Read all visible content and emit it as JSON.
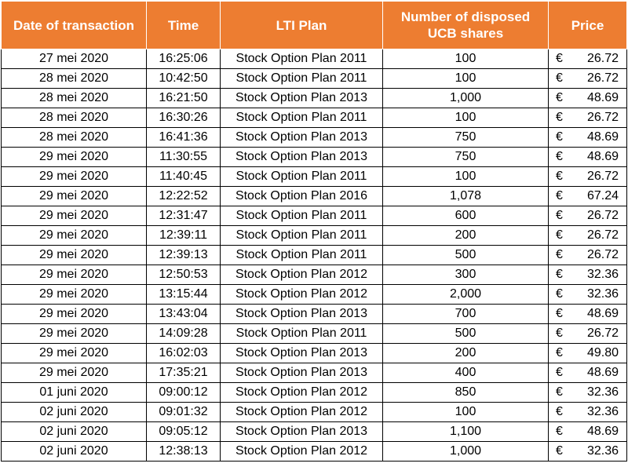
{
  "headers": {
    "date": "Date of transaction",
    "time": "Time",
    "plan": "LTI Plan",
    "shares_line1": "Number of disposed",
    "shares_line2": "UCB shares",
    "price": "Price"
  },
  "currency": "€",
  "rows": [
    {
      "date": "27 mei 2020",
      "time": "16:25:06",
      "plan": "Stock Option Plan 2011",
      "shares": "100",
      "price": "26.72"
    },
    {
      "date": "28 mei 2020",
      "time": "10:42:50",
      "plan": "Stock Option Plan 2011",
      "shares": "100",
      "price": "26.72"
    },
    {
      "date": "28 mei 2020",
      "time": "16:21:50",
      "plan": "Stock Option Plan 2013",
      "shares": "1,000",
      "price": "48.69"
    },
    {
      "date": "28 mei 2020",
      "time": "16:30:26",
      "plan": "Stock Option Plan 2011",
      "shares": "100",
      "price": "26.72"
    },
    {
      "date": "28 mei 2020",
      "time": "16:41:36",
      "plan": "Stock Option Plan 2013",
      "shares": "750",
      "price": "48.69"
    },
    {
      "date": "29 mei 2020",
      "time": "11:30:55",
      "plan": "Stock Option Plan 2013",
      "shares": "750",
      "price": "48.69"
    },
    {
      "date": "29 mei 2020",
      "time": "11:40:45",
      "plan": "Stock Option Plan 2011",
      "shares": "100",
      "price": "26.72"
    },
    {
      "date": "29 mei 2020",
      "time": "12:22:52",
      "plan": "Stock Option Plan 2016",
      "shares": "1,078",
      "price": "67.24"
    },
    {
      "date": "29 mei 2020",
      "time": "12:31:47",
      "plan": "Stock Option Plan 2011",
      "shares": "600",
      "price": "26.72"
    },
    {
      "date": "29 mei 2020",
      "time": "12:39:11",
      "plan": "Stock Option Plan 2011",
      "shares": "200",
      "price": "26.72"
    },
    {
      "date": "29 mei 2020",
      "time": "12:39:13",
      "plan": "Stock Option Plan 2011",
      "shares": "500",
      "price": "26.72"
    },
    {
      "date": "29 mei 2020",
      "time": "12:50:53",
      "plan": "Stock Option Plan 2012",
      "shares": "300",
      "price": "32.36"
    },
    {
      "date": "29 mei 2020",
      "time": "13:15:44",
      "plan": "Stock Option Plan 2012",
      "shares": "2,000",
      "price": "32.36"
    },
    {
      "date": "29 mei 2020",
      "time": "13:43:04",
      "plan": "Stock Option Plan 2013",
      "shares": "700",
      "price": "48.69"
    },
    {
      "date": "29 mei 2020",
      "time": "14:09:28",
      "plan": "Stock Option Plan 2011",
      "shares": "500",
      "price": "26.72"
    },
    {
      "date": "29 mei 2020",
      "time": "16:02:03",
      "plan": "Stock Option Plan 2013",
      "shares": "200",
      "price": "49.80"
    },
    {
      "date": "29 mei 2020",
      "time": "17:35:21",
      "plan": "Stock Option Plan 2013",
      "shares": "400",
      "price": "48.69"
    },
    {
      "date": "01 juni 2020",
      "time": "09:00:12",
      "plan": "Stock Option Plan 2012",
      "shares": "850",
      "price": "32.36"
    },
    {
      "date": "02 juni 2020",
      "time": "09:01:32",
      "plan": "Stock Option Plan 2012",
      "shares": "100",
      "price": "32.36"
    },
    {
      "date": "02 juni 2020",
      "time": "09:05:12",
      "plan": "Stock Option Plan 2013",
      "shares": "1,100",
      "price": "48.69"
    },
    {
      "date": "02 juni 2020",
      "time": "12:38:13",
      "plan": "Stock Option Plan 2012",
      "shares": "1,000",
      "price": "32.36"
    }
  ]
}
